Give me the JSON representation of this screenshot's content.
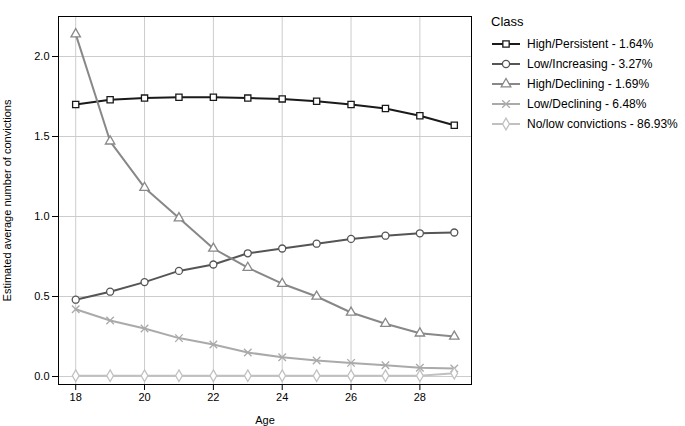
{
  "chart_data": {
    "type": "line",
    "xlabel": "Age",
    "ylabel": "Estimated average number of convictions",
    "x": [
      18,
      19,
      20,
      21,
      22,
      23,
      24,
      25,
      26,
      27,
      28,
      29
    ],
    "xlim": [
      17.5,
      29.5
    ],
    "ylim": [
      -0.05,
      2.25
    ],
    "xticks": [
      18,
      20,
      22,
      24,
      26,
      28
    ],
    "yticks": [
      {
        "value": 0.0,
        "label": "0.0"
      },
      0.5,
      {
        "value": 1.0,
        "label": "1.0"
      },
      1.5,
      {
        "value": 2.0,
        "label": "2.0"
      }
    ],
    "grid": true,
    "legend": "right",
    "legend_title": "Class",
    "series": [
      {
        "name": "High/Persistent - 1.64%",
        "color": "#1a1a1a",
        "marker": "square",
        "values": [
          1.7,
          1.73,
          1.74,
          1.745,
          1.745,
          1.74,
          1.735,
          1.72,
          1.7,
          1.675,
          1.63,
          1.57
        ]
      },
      {
        "name": "Low/Increasing - 3.27%",
        "color": "#555555",
        "marker": "circle",
        "values": [
          0.48,
          0.53,
          0.59,
          0.66,
          0.7,
          0.77,
          0.8,
          0.83,
          0.86,
          0.88,
          0.895,
          0.9
        ]
      },
      {
        "name": "High/Declining - 1.69%",
        "color": "#888888",
        "marker": "triangle",
        "values": [
          2.14,
          1.47,
          1.18,
          0.99,
          0.8,
          0.68,
          0.58,
          0.5,
          0.4,
          0.33,
          0.27,
          0.25
        ]
      },
      {
        "name": "Low/Declining - 6.48%",
        "color": "#aaaaaa",
        "marker": "times",
        "values": [
          0.42,
          0.35,
          0.3,
          0.24,
          0.2,
          0.15,
          0.12,
          0.1,
          0.085,
          0.07,
          0.055,
          0.05
        ]
      },
      {
        "name": "No/low convictions - 86.93%",
        "color": "#c0c0c0",
        "marker": "diamond",
        "values": [
          0.005,
          0.005,
          0.005,
          0.005,
          0.005,
          0.005,
          0.005,
          0.005,
          0.005,
          0.005,
          0.005,
          0.02
        ]
      }
    ]
  }
}
